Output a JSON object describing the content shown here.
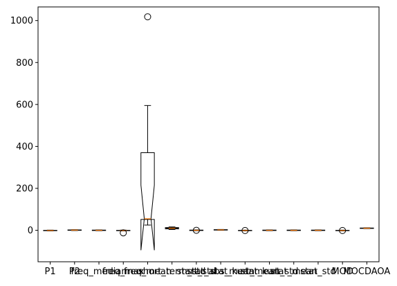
{
  "chart_data": {
    "type": "boxplot",
    "title": "",
    "xlabel": "",
    "ylabel": "",
    "ylim": [
      -150,
      1065
    ],
    "yticks": [
      0,
      200,
      400,
      600,
      800,
      1000
    ],
    "categories": [
      "P1",
      "P2",
      "freq_median",
      "freq_max",
      "freq_mean",
      "short_term_std",
      "start_std",
      "stat_abs_mean",
      "stat_kurt_mean",
      "stat_kurt_std",
      "stat_mean",
      "stat_std",
      "MOD",
      "MOCDAOA"
    ],
    "boxes": [
      {
        "label": "P1",
        "whisker_low": -3,
        "q1": -2,
        "median": -1,
        "q3": 0,
        "whisker_high": 1,
        "notch_low": -1.5,
        "notch_high": -0.5,
        "fliers": []
      },
      {
        "label": "P2",
        "whisker_low": -1,
        "q1": 0,
        "median": 1,
        "q3": 2,
        "whisker_high": 3,
        "notch_low": 0.5,
        "notch_high": 1.5,
        "fliers": []
      },
      {
        "label": "freq_median",
        "whisker_low": -2,
        "q1": -1,
        "median": 0,
        "q3": 1,
        "whisker_high": 2,
        "notch_low": -0.5,
        "notch_high": 0.5,
        "fliers": []
      },
      {
        "label": "freq_max",
        "whisker_low": -3,
        "q1": -2,
        "median": -1,
        "q3": 0,
        "whisker_high": 1,
        "notch_low": -1.5,
        "notch_high": -0.5,
        "fliers": [
          -12
        ]
      },
      {
        "label": "freq_mean",
        "whisker_low": 25,
        "q1": 52,
        "median": 55,
        "q3": 370,
        "whisker_high": 595,
        "notch_low": -95,
        "notch_high": 215,
        "fliers": [
          1018
        ]
      },
      {
        "label": "short_term_std",
        "whisker_low": 4,
        "q1": 7,
        "median": 10,
        "q3": 13,
        "whisker_high": 16,
        "notch_low": 8,
        "notch_high": 12,
        "fliers": []
      },
      {
        "label": "start_std",
        "whisker_low": -2,
        "q1": -1,
        "median": 0,
        "q3": 1,
        "whisker_high": 2,
        "notch_low": -0.5,
        "notch_high": 0.5,
        "fliers": [
          0
        ]
      },
      {
        "label": "stat_abs_mean",
        "whisker_low": 0,
        "q1": 1,
        "median": 2,
        "q3": 3,
        "whisker_high": 4,
        "notch_low": 1.5,
        "notch_high": 2.5,
        "fliers": []
      },
      {
        "label": "stat_kurt_mean",
        "whisker_low": -3,
        "q1": -2,
        "median": -1,
        "q3": 0,
        "whisker_high": 1,
        "notch_low": -1.5,
        "notch_high": -0.5,
        "fliers": [
          -1
        ]
      },
      {
        "label": "stat_kurt_std",
        "whisker_low": -2,
        "q1": -1,
        "median": 0,
        "q3": 1,
        "whisker_high": 2,
        "notch_low": -0.5,
        "notch_high": 0.5,
        "fliers": []
      },
      {
        "label": "stat_mean",
        "whisker_low": -2,
        "q1": -1,
        "median": 0,
        "q3": 1,
        "whisker_high": 2,
        "notch_low": -0.5,
        "notch_high": 0.5,
        "fliers": []
      },
      {
        "label": "stat_std",
        "whisker_low": -2,
        "q1": -1,
        "median": 0,
        "q3": 1,
        "whisker_high": 2,
        "notch_low": -0.5,
        "notch_high": 0.5,
        "fliers": []
      },
      {
        "label": "MOD",
        "whisker_low": -3,
        "q1": -2,
        "median": -1,
        "q3": 0,
        "whisker_high": 1,
        "notch_low": -1.5,
        "notch_high": -0.5,
        "fliers": [
          -1
        ]
      },
      {
        "label": "MOCDAOA",
        "whisker_low": 8,
        "q1": 9,
        "median": 10,
        "q3": 11,
        "whisker_high": 12,
        "notch_low": 9.5,
        "notch_high": 10.5,
        "fliers": []
      }
    ],
    "grid": false,
    "legend": "none",
    "colors": {
      "box": "#000000",
      "median": "#ff7f0e",
      "background": "#ffffff"
    }
  }
}
